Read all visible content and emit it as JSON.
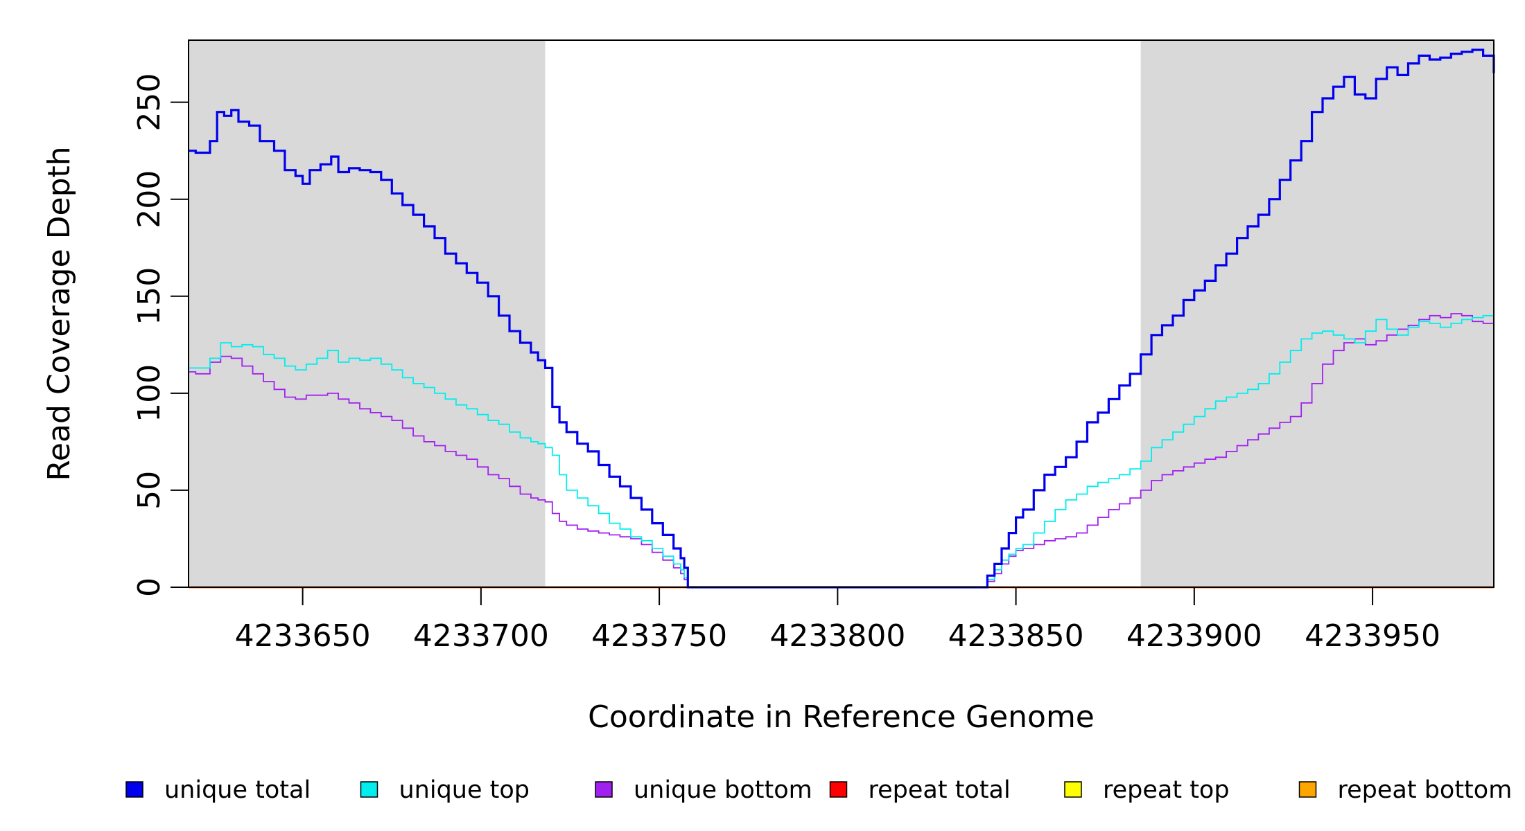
{
  "chart_data": {
    "type": "line",
    "title": "",
    "xlabel": "Coordinate in Reference Genome",
    "ylabel": "Read Coverage Depth",
    "xlim": [
      4233618,
      4233984
    ],
    "ylim": [
      0,
      282
    ],
    "x_ticks": [
      4233650,
      4233700,
      4233750,
      4233800,
      4233850,
      4233900,
      4233950
    ],
    "x_tick_labels": [
      "4233650",
      "4233700",
      "4233750",
      "4233800",
      "4233850",
      "4233900",
      "4233950"
    ],
    "y_ticks": [
      0,
      50,
      100,
      150,
      200,
      250
    ],
    "y_tick_labels": [
      "0",
      "50",
      "100",
      "150",
      "200",
      "250"
    ],
    "shaded_regions": [
      {
        "x_start": 4233618,
        "x_end": 4233718,
        "color": "#d9d9d9"
      },
      {
        "x_start": 4233885,
        "x_end": 4233984,
        "color": "#d9d9d9"
      }
    ],
    "grid": false,
    "legend_position": "bottom",
    "series": [
      {
        "name": "unique total",
        "color": "#0000ee",
        "x": [
          4233618,
          4233620,
          4233624,
          4233626,
          4233628,
          4233630,
          4233632,
          4233635,
          4233638,
          4233642,
          4233645,
          4233648,
          4233650,
          4233652,
          4233655,
          4233658,
          4233660,
          4233663,
          4233666,
          4233669,
          4233672,
          4233675,
          4233678,
          4233681,
          4233684,
          4233687,
          4233690,
          4233693,
          4233696,
          4233699,
          4233702,
          4233705,
          4233708,
          4233711,
          4233714,
          4233716,
          4233718,
          4233720,
          4233722,
          4233724,
          4233727,
          4233730,
          4233733,
          4233736,
          4233739,
          4233742,
          4233745,
          4233748,
          4233751,
          4233754,
          4233756,
          4233757,
          4233758,
          4233760,
          4233780,
          4233800,
          4233820,
          4233841,
          4233842,
          4233844,
          4233846,
          4233848,
          4233850,
          4233852,
          4233855,
          4233858,
          4233861,
          4233864,
          4233867,
          4233870,
          4233873,
          4233876,
          4233879,
          4233882,
          4233885,
          4233888,
          4233891,
          4233894,
          4233897,
          4233900,
          4233903,
          4233906,
          4233909,
          4233912,
          4233915,
          4233918,
          4233921,
          4233924,
          4233927,
          4233930,
          4233933,
          4233936,
          4233939,
          4233942,
          4233945,
          4233948,
          4233951,
          4233954,
          4233957,
          4233960,
          4233963,
          4233966,
          4233969,
          4233972,
          4233975,
          4233978,
          4233981,
          4233984
        ],
        "y": [
          225,
          224,
          230,
          245,
          243,
          246,
          240,
          238,
          230,
          225,
          215,
          212,
          208,
          215,
          218,
          222,
          214,
          216,
          215,
          214,
          210,
          203,
          197,
          192,
          186,
          180,
          172,
          167,
          162,
          157,
          150,
          140,
          132,
          126,
          121,
          117,
          113,
          93,
          85,
          80,
          74,
          70,
          63,
          57,
          52,
          46,
          40,
          33,
          27,
          20,
          15,
          10,
          0,
          0,
          0,
          0,
          0,
          0,
          6,
          12,
          20,
          28,
          36,
          40,
          50,
          58,
          62,
          67,
          75,
          85,
          90,
          97,
          104,
          110,
          120,
          130,
          135,
          140,
          148,
          153,
          158,
          166,
          172,
          180,
          186,
          192,
          200,
          210,
          220,
          230,
          245,
          252,
          258,
          263,
          254,
          252,
          262,
          268,
          264,
          270,
          274,
          272,
          273,
          275,
          276,
          277,
          274,
          265
        ]
      },
      {
        "name": "unique top",
        "color": "#00eeee",
        "x": [
          4233618,
          4233620,
          4233624,
          4233627,
          4233630,
          4233633,
          4233636,
          4233639,
          4233642,
          4233645,
          4233648,
          4233651,
          4233654,
          4233657,
          4233660,
          4233663,
          4233666,
          4233669,
          4233672,
          4233675,
          4233678,
          4233681,
          4233684,
          4233687,
          4233690,
          4233693,
          4233696,
          4233699,
          4233702,
          4233705,
          4233708,
          4233711,
          4233714,
          4233716,
          4233718,
          4233720,
          4233722,
          4233724,
          4233727,
          4233730,
          4233733,
          4233736,
          4233739,
          4233742,
          4233745,
          4233748,
          4233751,
          4233754,
          4233756,
          4233757,
          4233758,
          4233760,
          4233780,
          4233800,
          4233820,
          4233841,
          4233842,
          4233844,
          4233846,
          4233848,
          4233850,
          4233852,
          4233855,
          4233858,
          4233861,
          4233864,
          4233867,
          4233870,
          4233873,
          4233876,
          4233879,
          4233882,
          4233885,
          4233888,
          4233891,
          4233894,
          4233897,
          4233900,
          4233903,
          4233906,
          4233909,
          4233912,
          4233915,
          4233918,
          4233921,
          4233924,
          4233927,
          4233930,
          4233933,
          4233936,
          4233939,
          4233942,
          4233945,
          4233948,
          4233951,
          4233954,
          4233957,
          4233960,
          4233963,
          4233966,
          4233969,
          4233972,
          4233975,
          4233978,
          4233981,
          4233984
        ],
        "y": [
          113,
          113,
          118,
          126,
          124,
          125,
          124,
          120,
          118,
          114,
          112,
          115,
          118,
          122,
          116,
          118,
          117,
          118,
          115,
          112,
          108,
          105,
          103,
          100,
          97,
          94,
          92,
          89,
          86,
          84,
          80,
          77,
          75,
          74,
          72,
          68,
          58,
          50,
          46,
          42,
          38,
          33,
          30,
          26,
          24,
          20,
          16,
          12,
          9,
          5,
          0,
          0,
          0,
          0,
          0,
          0,
          4,
          9,
          14,
          17,
          20,
          22,
          28,
          34,
          40,
          45,
          48,
          52,
          54,
          56,
          58,
          61,
          65,
          72,
          76,
          80,
          84,
          88,
          92,
          96,
          98,
          100,
          102,
          105,
          110,
          116,
          122,
          128,
          131,
          132,
          130,
          128,
          126,
          132,
          138,
          133,
          130,
          134,
          137,
          136,
          134,
          136,
          138,
          139,
          140,
          138
        ]
      },
      {
        "name": "unique bottom",
        "color": "#a020f0",
        "x": [
          4233618,
          4233620,
          4233624,
          4233627,
          4233630,
          4233633,
          4233636,
          4233639,
          4233642,
          4233645,
          4233648,
          4233651,
          4233654,
          4233657,
          4233660,
          4233663,
          4233666,
          4233669,
          4233672,
          4233675,
          4233678,
          4233681,
          4233684,
          4233687,
          4233690,
          4233693,
          4233696,
          4233699,
          4233702,
          4233705,
          4233708,
          4233711,
          4233714,
          4233716,
          4233718,
          4233720,
          4233722,
          4233724,
          4233727,
          4233730,
          4233733,
          4233736,
          4233739,
          4233742,
          4233745,
          4233748,
          4233751,
          4233754,
          4233756,
          4233757,
          4233758,
          4233760,
          4233780,
          4233800,
          4233820,
          4233841,
          4233842,
          4233844,
          4233846,
          4233848,
          4233850,
          4233852,
          4233855,
          4233858,
          4233861,
          4233864,
          4233867,
          4233870,
          4233873,
          4233876,
          4233879,
          4233882,
          4233885,
          4233888,
          4233891,
          4233894,
          4233897,
          4233900,
          4233903,
          4233906,
          4233909,
          4233912,
          4233915,
          4233918,
          4233921,
          4233924,
          4233927,
          4233930,
          4233933,
          4233936,
          4233939,
          4233942,
          4233945,
          4233948,
          4233951,
          4233954,
          4233957,
          4233960,
          4233963,
          4233966,
          4233969,
          4233972,
          4233975,
          4233978,
          4233981,
          4233984
        ],
        "y": [
          111,
          110,
          116,
          119,
          118,
          114,
          110,
          106,
          102,
          98,
          97,
          99,
          99,
          100,
          97,
          95,
          92,
          90,
          88,
          86,
          82,
          78,
          75,
          73,
          70,
          68,
          66,
          62,
          58,
          56,
          52,
          48,
          46,
          45,
          44,
          38,
          34,
          32,
          30,
          29,
          28,
          27,
          26,
          25,
          22,
          18,
          14,
          10,
          7,
          4,
          0,
          0,
          0,
          0,
          0,
          0,
          3,
          7,
          12,
          16,
          19,
          20,
          22,
          24,
          25,
          26,
          28,
          32,
          36,
          40,
          43,
          46,
          50,
          55,
          58,
          60,
          62,
          64,
          66,
          67,
          70,
          73,
          76,
          79,
          82,
          85,
          88,
          95,
          105,
          115,
          122,
          126,
          128,
          125,
          127,
          130,
          133,
          135,
          138,
          140,
          139,
          141,
          140,
          137,
          136,
          134
        ]
      },
      {
        "name": "repeat total",
        "color": "#ff0000",
        "x": [
          4233618,
          4233984
        ],
        "y": [
          0,
          0
        ]
      },
      {
        "name": "repeat top",
        "color": "#ffff00",
        "x": [
          4233618,
          4233984
        ],
        "y": [
          0,
          0
        ]
      },
      {
        "name": "repeat bottom",
        "color": "#ffa500",
        "x": [
          4233618,
          4233984
        ],
        "y": [
          0,
          0
        ]
      }
    ]
  }
}
